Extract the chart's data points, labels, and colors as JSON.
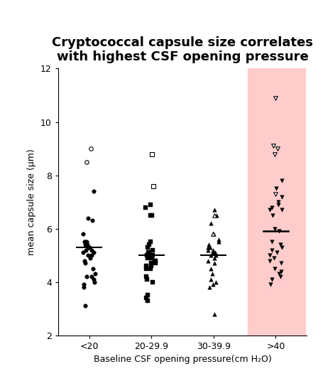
{
  "title": "Cryptococcal capsule size correlates\nwith highest CSF opening pressure",
  "xlabel": "Baseline CSF opening pressure(cm H₂O)",
  "ylabel": "mean capsule size (μm)",
  "ylim": [
    2,
    12
  ],
  "yticks": [
    2,
    4,
    6,
    8,
    10,
    12
  ],
  "categories": [
    "<20",
    "20-29.9",
    "30-39.9",
    ">40"
  ],
  "highlight_color": "#FFCCCC",
  "medians": [
    5.3,
    5.0,
    5.0,
    5.9
  ],
  "group1_filled": [
    6.4,
    6.3,
    5.8,
    5.5,
    5.5,
    5.5,
    5.4,
    5.4,
    5.3,
    5.3,
    5.3,
    5.2,
    5.2,
    5.1,
    5.1,
    5.0,
    5.0,
    4.9,
    4.8,
    4.7,
    4.5,
    4.3,
    4.2,
    4.2,
    4.1,
    4.0,
    3.9,
    3.8,
    3.1,
    7.4
  ],
  "group1_open": [
    9.0,
    8.5
  ],
  "group2_filled": [
    6.9,
    6.8,
    6.5,
    6.5,
    5.5,
    5.4,
    5.3,
    5.2,
    5.1,
    5.1,
    5.0,
    5.0,
    5.0,
    4.9,
    4.9,
    4.8,
    4.8,
    4.7,
    4.7,
    4.6,
    4.6,
    4.5,
    4.5,
    4.2,
    4.1,
    4.0,
    3.5,
    3.4,
    3.3
  ],
  "group2_open": [
    8.8,
    7.6
  ],
  "group3_filled": [
    6.7,
    6.5,
    6.2,
    5.8,
    5.6,
    5.5,
    5.4,
    5.3,
    5.3,
    5.2,
    5.2,
    5.1,
    5.1,
    5.0,
    5.0,
    4.9,
    4.8,
    4.7,
    4.5,
    4.3,
    4.1,
    4.0,
    3.9,
    3.8,
    2.8
  ],
  "group3_open": [
    6.5,
    5.8
  ],
  "group4_filled": [
    7.8,
    7.5,
    7.2,
    7.0,
    6.9,
    6.8,
    6.7,
    6.7,
    6.5,
    6.0,
    5.9,
    5.5,
    5.4,
    5.3,
    5.2,
    5.1,
    5.0,
    4.9,
    4.8,
    4.7,
    4.5,
    4.4,
    4.3,
    4.2,
    4.1,
    3.9
  ],
  "group4_open": [
    10.9,
    9.1,
    9.0,
    8.8,
    7.3
  ],
  "marker_size": 4,
  "line_color": "black",
  "background": "white",
  "title_fontsize": 13,
  "axis_fontsize": 9,
  "tick_fontsize": 9
}
